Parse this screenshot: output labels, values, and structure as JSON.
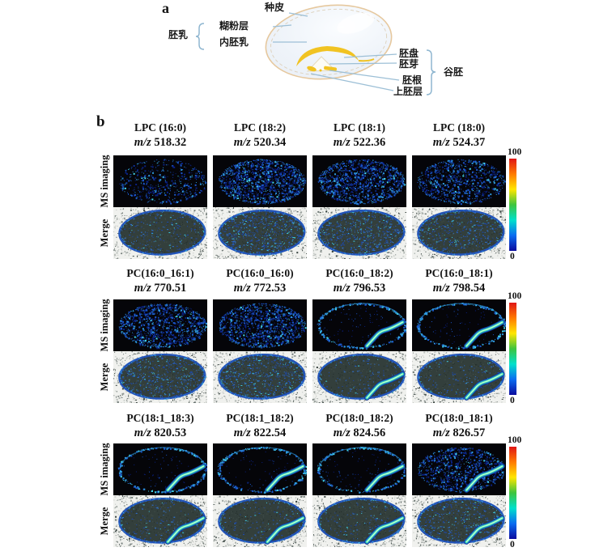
{
  "panel_a": {
    "label": "a",
    "labels": {
      "seed_coat": "种皮",
      "endosperm": "胚乳",
      "aleurone": "糊粉层",
      "inner_endosperm": "内胚乳",
      "scutellum": "胚盘",
      "plumule": "胚芽",
      "radicle": "胚根",
      "epiblast": "上胚层",
      "grain_embryo": "谷胚"
    },
    "colors": {
      "seed_outline": "#e6c89e",
      "seed_fill": "#eef3f9",
      "embryo_yellow": "#f1c322",
      "pointer_line": "#9cbfd6",
      "brace": "#8fb6d0"
    }
  },
  "panel_b": {
    "label": "b",
    "row_labels": [
      "MS imaging",
      "Merge"
    ],
    "mz_prefix": "m/z",
    "colorbar": {
      "max_label": "100",
      "min_label": "0",
      "stops": [
        "#e01616",
        "#ff7a00",
        "#ffe600",
        "#3ec43e",
        "#00e0cc",
        "#0a6cf0",
        "#0b0b9e"
      ]
    },
    "colors": {
      "ms_background": "#050509",
      "blue_dim": "#0a2080",
      "blue_mid": "#1b56c8",
      "blue_bright": "#2f9be0",
      "cyan": "#45d8e8",
      "hotspot_green": "#3ce098",
      "hotspot_light": "#bdf8e0",
      "hotspot_blue": "#1e88d8",
      "hotspot_dark": "#123a9a",
      "merge_background": "#f0f1ee",
      "merge_seed": "#333f3c",
      "rim_blue": "#2253b8"
    },
    "groups": [
      {
        "columns": [
          {
            "name": "LPC (16:0)",
            "mz": "518.32",
            "pattern": "full",
            "intensity": 0.3,
            "hotspot": false
          },
          {
            "name": "LPC (18:2)",
            "mz": "520.34",
            "pattern": "full",
            "intensity": 0.85,
            "hotspot": false
          },
          {
            "name": "LPC (18:1)",
            "mz": "522.36",
            "pattern": "full",
            "intensity": 0.8,
            "hotspot": false
          },
          {
            "name": "LPC (18:0)",
            "mz": "524.37",
            "pattern": "full",
            "intensity": 0.55,
            "hotspot": false
          }
        ]
      },
      {
        "columns": [
          {
            "name": "PC(16:0_16:1)",
            "mz": "770.51",
            "pattern": "full",
            "intensity": 0.7,
            "hotspot": false
          },
          {
            "name": "PC(16:0_16:0)",
            "mz": "772.53",
            "pattern": "full",
            "intensity": 0.75,
            "hotspot": false
          },
          {
            "name": "PC(16:0_18:2)",
            "mz": "796.53",
            "pattern": "rim",
            "intensity": 0.25,
            "hotspot": true
          },
          {
            "name": "PC(16:0_18:1)",
            "mz": "798.54",
            "pattern": "rim",
            "intensity": 0.2,
            "hotspot": true
          }
        ]
      },
      {
        "columns": [
          {
            "name": "PC(18:1_18:3)",
            "mz": "820.53",
            "pattern": "rim",
            "intensity": 0.2,
            "hotspot": true
          },
          {
            "name": "PC(18:1_18:2)",
            "mz": "822.54",
            "pattern": "rim",
            "intensity": 0.22,
            "hotspot": true
          },
          {
            "name": "PC(18:0_18:2)",
            "mz": "824.56",
            "pattern": "rim",
            "intensity": 0.25,
            "hotspot": true
          },
          {
            "name": "PC(18:0_18:1)",
            "mz": "826.57",
            "pattern": "full",
            "intensity": 0.55,
            "hotspot": true
          }
        ]
      }
    ]
  }
}
